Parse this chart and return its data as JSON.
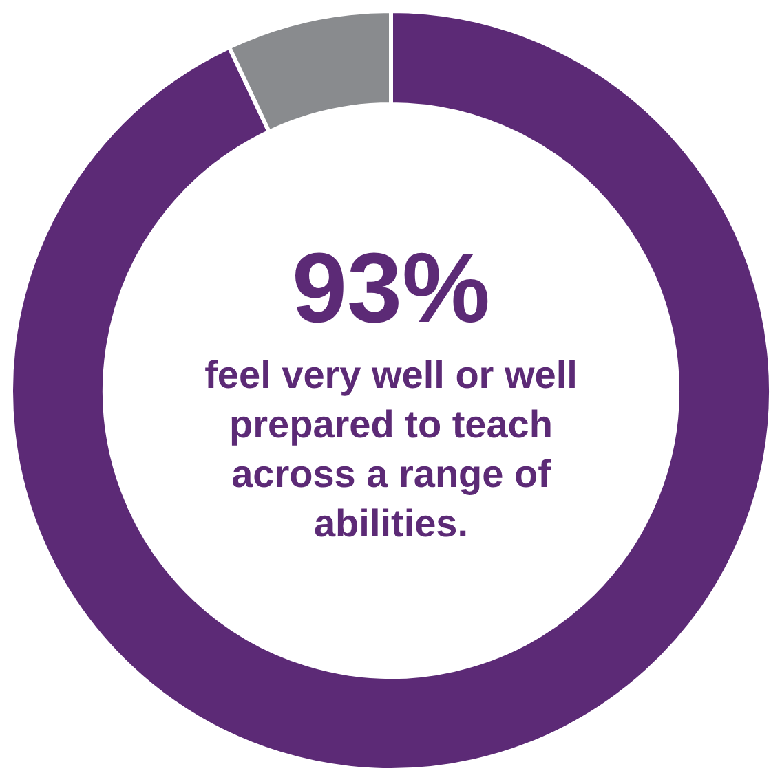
{
  "chart_data": {
    "type": "donut",
    "categories": [
      null,
      null
    ],
    "values": [
      93,
      7
    ],
    "colors": [
      "#5c2a76",
      "#898b8e"
    ],
    "value_labels": [
      "93%",
      null
    ],
    "annotations": [
      "feel very well or well prepared to teach across a range of abilities."
    ]
  }
}
